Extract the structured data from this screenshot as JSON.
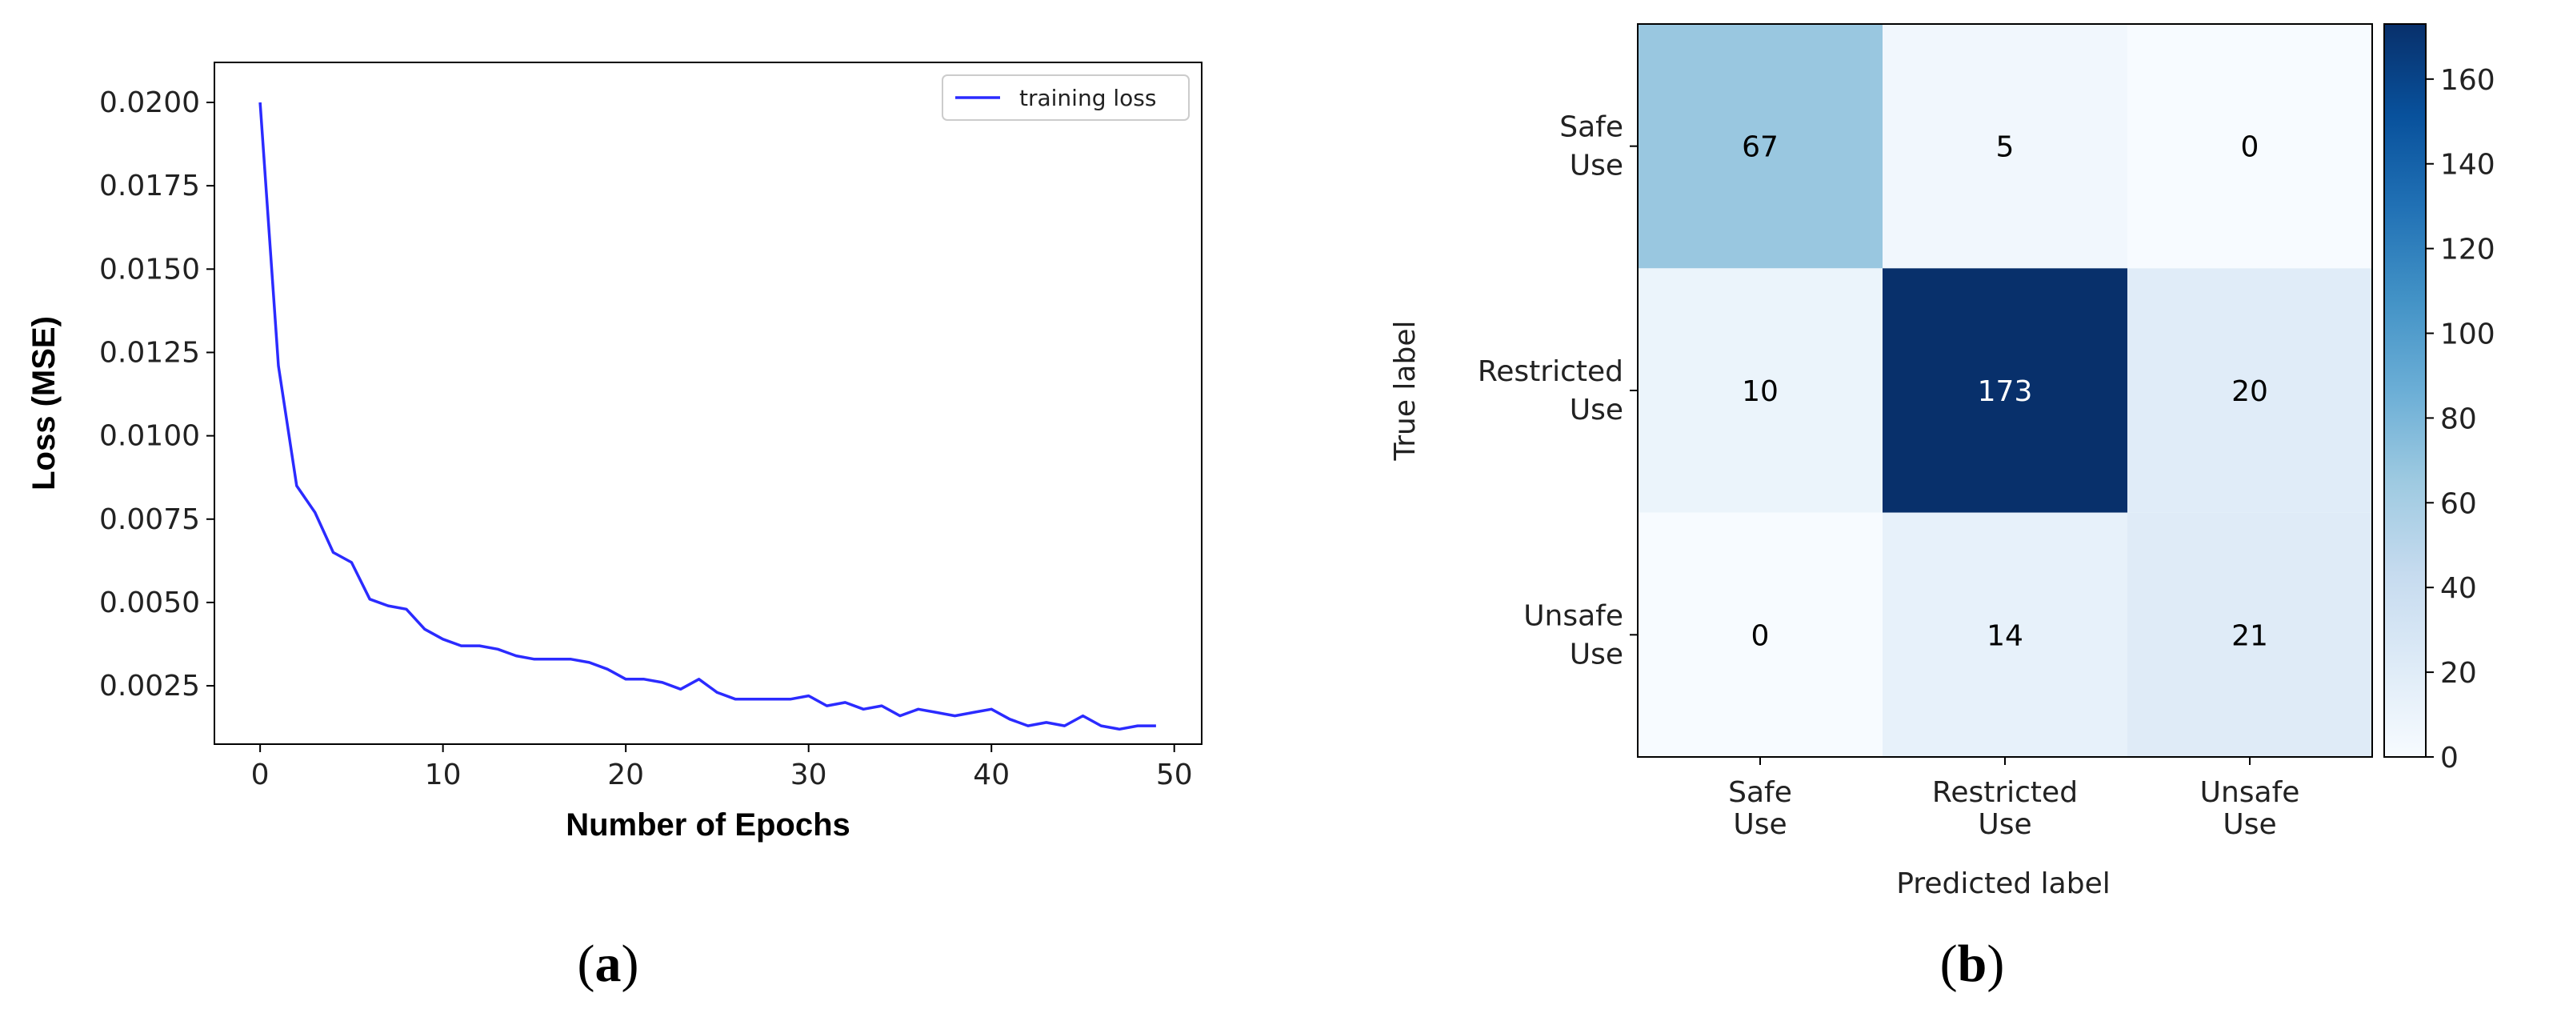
{
  "chart_data": [
    {
      "type": "line",
      "panel": "a",
      "caption": "(a)",
      "title": "",
      "xlabel": "Number of Epochs",
      "ylabel": "Loss (MSE)",
      "xlim": [
        -2.5,
        51.5
      ],
      "ylim": [
        0.00075,
        0.0212
      ],
      "xticks": [
        0,
        10,
        20,
        30,
        40,
        50
      ],
      "yticks": [
        "0.0025",
        "0.0050",
        "0.0075",
        "0.0100",
        "0.0125",
        "0.0150",
        "0.0175",
        "0.0200"
      ],
      "legend": {
        "position": "top-right",
        "entries": [
          "training loss"
        ]
      },
      "color": "#2b2bff",
      "series": [
        {
          "name": "training loss",
          "x": [
            0,
            1,
            2,
            3,
            4,
            5,
            6,
            7,
            8,
            9,
            10,
            11,
            12,
            13,
            14,
            15,
            16,
            17,
            18,
            19,
            20,
            21,
            22,
            23,
            24,
            25,
            26,
            27,
            28,
            29,
            30,
            31,
            32,
            33,
            34,
            35,
            36,
            37,
            38,
            39,
            40,
            41,
            42,
            43,
            44,
            45,
            46,
            47,
            48,
            49
          ],
          "values": [
            0.02,
            0.0121,
            0.0085,
            0.0077,
            0.0065,
            0.0062,
            0.0051,
            0.0049,
            0.0048,
            0.0042,
            0.0039,
            0.0037,
            0.0037,
            0.0036,
            0.0034,
            0.0033,
            0.0033,
            0.0033,
            0.0032,
            0.003,
            0.0027,
            0.0027,
            0.0026,
            0.0024,
            0.0027,
            0.0023,
            0.0021,
            0.0021,
            0.0021,
            0.0021,
            0.0022,
            0.0019,
            0.002,
            0.0018,
            0.0019,
            0.0016,
            0.0018,
            0.0017,
            0.0016,
            0.0017,
            0.0018,
            0.0015,
            0.0013,
            0.0014,
            0.0013,
            0.0016,
            0.0013,
            0.0012,
            0.0013,
            0.0013
          ]
        }
      ]
    },
    {
      "type": "heatmap",
      "panel": "b",
      "caption": "(b)",
      "title": "",
      "xlabel": "Predicted label",
      "ylabel": "True label",
      "x_categories": [
        [
          "Safe",
          "Use"
        ],
        [
          "Restricted",
          "Use"
        ],
        [
          "Unsafe",
          "Use"
        ]
      ],
      "y_categories": [
        [
          "Safe",
          "Use"
        ],
        [
          "Restricted",
          "Use"
        ],
        [
          "Unsafe",
          "Use"
        ]
      ],
      "matrix": [
        [
          67,
          5,
          0
        ],
        [
          10,
          173,
          20
        ],
        [
          0,
          14,
          21
        ]
      ],
      "colorbar": {
        "min": 0,
        "max": 173,
        "ticks": [
          0,
          20,
          40,
          60,
          80,
          100,
          120,
          140,
          160
        ],
        "colormap": "Blues"
      }
    }
  ]
}
